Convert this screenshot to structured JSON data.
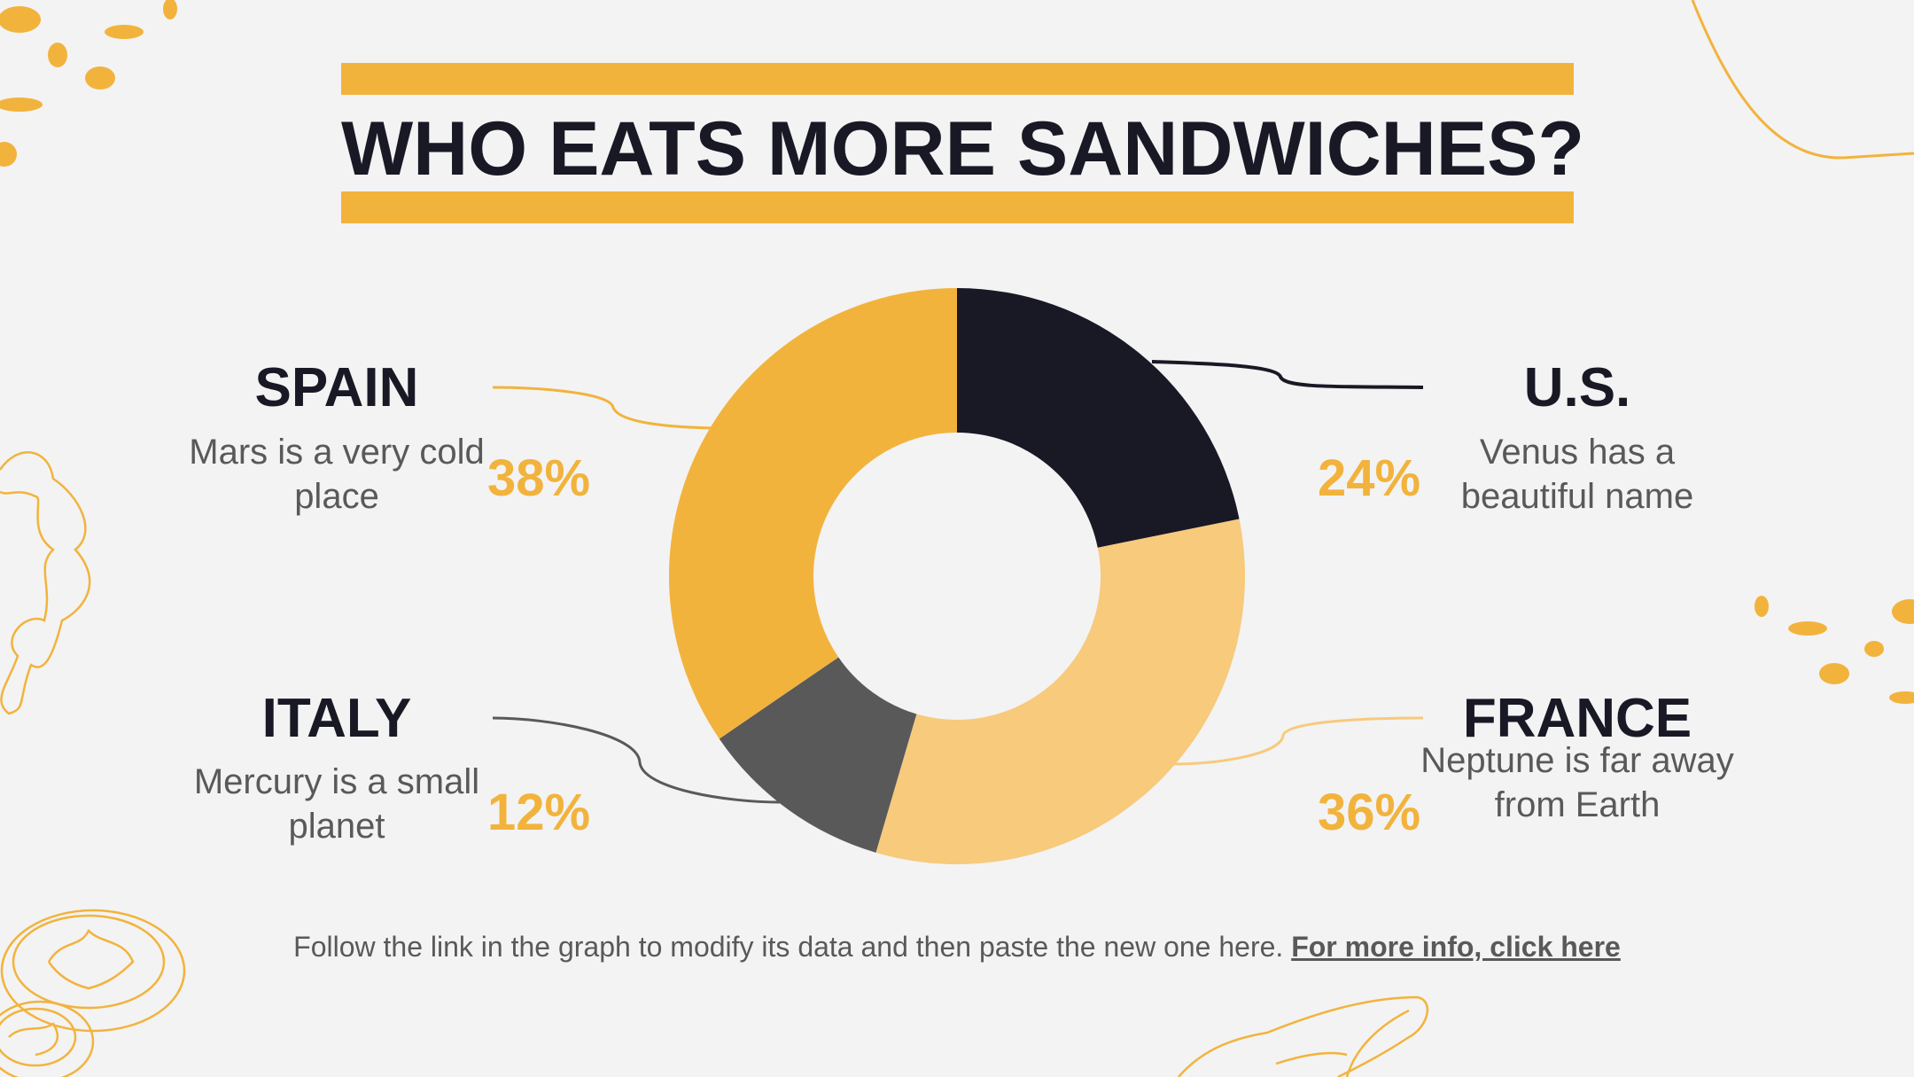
{
  "title": "WHO EATS MORE SANDWICHES?",
  "colors": {
    "accent": "#f2b33d",
    "light_accent": "#f7ca7c",
    "dark": "#191926",
    "gray": "#595959",
    "background": "#f3f3f3"
  },
  "labels": {
    "spain": {
      "country": "SPAIN",
      "desc": "Mars is a very cold place",
      "pct": "38%"
    },
    "italy": {
      "country": "ITALY",
      "desc": "Mercury is a small planet",
      "pct": "12%"
    },
    "us": {
      "country": "U.S.",
      "desc": "Venus has a beautiful name",
      "pct": "24%"
    },
    "france": {
      "country": "FRANCE",
      "desc": "Neptune is far away from Earth",
      "pct": "36%"
    }
  },
  "footer": {
    "text": "Follow the link in the graph to modify its data and then paste the new one here.",
    "link": "For more info, click here"
  },
  "chart_data": {
    "type": "pie",
    "variant": "donut",
    "title": "WHO EATS MORE SANDWICHES?",
    "categories": [
      "U.S.",
      "France",
      "Italy",
      "Spain"
    ],
    "values": [
      24,
      36,
      12,
      38
    ],
    "unit": "%",
    "colors": [
      "#191926",
      "#f7ca7c",
      "#595959",
      "#f2b33d"
    ],
    "start_angle": "12 o'clock",
    "direction": "clockwise"
  }
}
